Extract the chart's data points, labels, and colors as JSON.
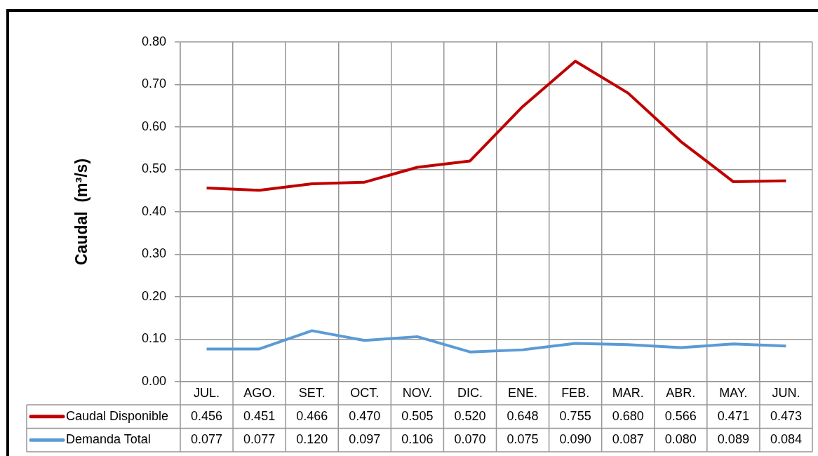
{
  "chart_data": {
    "type": "line",
    "ylabel": "Caudal  (m³/s)",
    "categories": [
      "JUL.",
      "AGO.",
      "SET.",
      "OCT.",
      "NOV.",
      "DIC.",
      "ENE.",
      "FEB.",
      "MAR.",
      "ABR.",
      "MAY.",
      "JUN."
    ],
    "series": [
      {
        "name": "Caudal Disponible",
        "color": "#c00000",
        "values": [
          0.456,
          0.451,
          0.466,
          0.47,
          0.505,
          0.52,
          0.648,
          0.755,
          0.68,
          0.566,
          0.471,
          0.473
        ],
        "value_labels": [
          "0.456",
          "0.451",
          "0.466",
          "0.470",
          "0.505",
          "0.520",
          "0.648",
          "0.755",
          "0.680",
          "0.566",
          "0.471",
          "0.473"
        ]
      },
      {
        "name": "Demanda Total",
        "color": "#5b9bd5",
        "values": [
          0.077,
          0.077,
          0.12,
          0.097,
          0.106,
          0.07,
          0.075,
          0.09,
          0.087,
          0.08,
          0.089,
          0.084
        ],
        "value_labels": [
          "0.077",
          "0.077",
          "0.120",
          "0.097",
          "0.106",
          "0.070",
          "0.075",
          "0.090",
          "0.087",
          "0.080",
          "0.089",
          "0.084"
        ]
      }
    ],
    "ylim": [
      0,
      0.8
    ],
    "yticks": [
      {
        "value": 0,
        "label": "0.00"
      },
      {
        "value": 0.1,
        "label": "0.10"
      },
      {
        "value": 0.2,
        "label": "0.20"
      },
      {
        "value": 0.3,
        "label": "0.30"
      },
      {
        "value": 0.4,
        "label": "0.40"
      },
      {
        "value": 0.5,
        "label": "0.50"
      },
      {
        "value": 0.6,
        "label": "0.60"
      },
      {
        "value": 0.7,
        "label": "0.70"
      },
      {
        "value": 0.8,
        "label": "0.80"
      }
    ],
    "grid": true,
    "legend": "bottom",
    "marker": "none"
  }
}
